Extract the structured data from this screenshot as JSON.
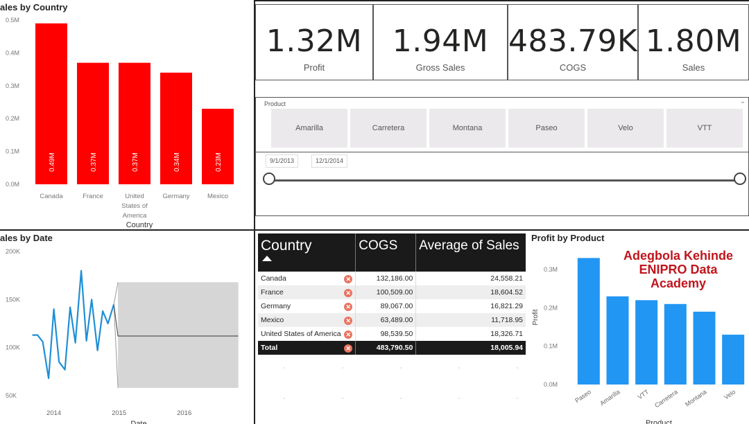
{
  "cards": [
    {
      "value": "1.32M",
      "label": "Profit"
    },
    {
      "value": "1.94M",
      "label": "Gross Sales"
    },
    {
      "value": "483.79K",
      "label": "COGS"
    },
    {
      "value": "1.80M",
      "label": "Sales"
    }
  ],
  "slicer": {
    "title": "Product",
    "items": [
      "Amarilla",
      "Carretera",
      "Montana",
      "Paseo",
      "Velo",
      "VTT"
    ],
    "date_start": "9/1/2013",
    "date_end": "12/1/2014",
    "chevron_icon": "chevron-down-icon"
  },
  "matrix": {
    "headers": [
      "Country",
      "COGS",
      "Average of Sales"
    ],
    "sort_icon": "sort-ascending-icon",
    "row_icon": "close-circle-icon",
    "rows": [
      {
        "country": "Canada",
        "cogs": "132,186.00",
        "avg": "24,558.21"
      },
      {
        "country": "France",
        "cogs": "100,509.00",
        "avg": "18,604.52"
      },
      {
        "country": "Germany",
        "cogs": "89,067.00",
        "avg": "16,821.29"
      },
      {
        "country": "Mexico",
        "cogs": "63,489.00",
        "avg": "11,718.95"
      },
      {
        "country": "United States of America",
        "cogs": "98,539.50",
        "avg": "18,326.71"
      }
    ],
    "total": {
      "label": "Total",
      "cogs": "483,790.50",
      "avg": "18,005.94"
    }
  },
  "watermark": {
    "line1": "Adegbola Kehinde",
    "line2": "ENIPRO Data",
    "line3": "Academy",
    "color": "#c0141c"
  },
  "colors": {
    "red_bar": "#ff0000",
    "blue_bar": "#2196f3",
    "line": "#1e8fd6",
    "forecast_band": "#d6d6d6",
    "matrix_header": "#1a1a1a"
  },
  "chart_data": [
    {
      "type": "bar",
      "title": "ales by Country",
      "xlabel": "Country",
      "ylabel": "",
      "categories": [
        [
          "Canada"
        ],
        [
          "France"
        ],
        [
          "United",
          "States of",
          "America"
        ],
        [
          "Germany"
        ],
        [
          "Mexico"
        ]
      ],
      "values": [
        0.49,
        0.37,
        0.37,
        0.34,
        0.23
      ],
      "data_labels": [
        "0.49M",
        "0.37M",
        "0.37M",
        "0.34M",
        "0.23M"
      ],
      "yticks": [
        "0.0M",
        "0.1M",
        "0.2M",
        "0.3M",
        "0.4M",
        "0.5M"
      ],
      "ylim": [
        0,
        0.5
      ],
      "color": "#ff0000"
    },
    {
      "type": "line",
      "title": "ales by Date",
      "xlabel": "Date",
      "ylabel": "",
      "x": [
        2013.67,
        2013.75,
        2013.83,
        2013.92,
        2014.0,
        2014.08,
        2014.17,
        2014.25,
        2014.33,
        2014.42,
        2014.5,
        2014.58,
        2014.67,
        2014.75,
        2014.83,
        2014.92
      ],
      "values": [
        113000,
        113000,
        106000,
        68000,
        140000,
        85000,
        77000,
        142000,
        105000,
        180000,
        107000,
        150000,
        97000,
        138000,
        125000,
        145000
      ],
      "forecast": {
        "x_start": 2014.92,
        "x_end": 2016.83,
        "level": 112000,
        "upper": 168000,
        "lower": 58000
      },
      "xticks": [
        "2014",
        "2015",
        "2016"
      ],
      "xtick_values": [
        2014,
        2015,
        2016
      ],
      "yticks": [
        "50K",
        "100K",
        "150K",
        "200K"
      ],
      "ytick_values": [
        50000,
        100000,
        150000,
        200000
      ],
      "xlim": [
        2013.6,
        2016.95
      ],
      "ylim": [
        50000,
        200000
      ],
      "color": "#1e8fd6"
    },
    {
      "type": "bar",
      "title": "Profit by Product",
      "xlabel": "Product",
      "ylabel": "Profit",
      "categories": [
        "Paseo",
        "Amarilla",
        "VTT",
        "Carretera",
        "Montana",
        "Velo"
      ],
      "values": [
        0.33,
        0.23,
        0.22,
        0.21,
        0.19,
        0.13
      ],
      "yticks": [
        "0.0M",
        "0.1M",
        "0.2M",
        "0.3M"
      ],
      "ylim": [
        0,
        0.35
      ],
      "color": "#2196f3"
    }
  ]
}
